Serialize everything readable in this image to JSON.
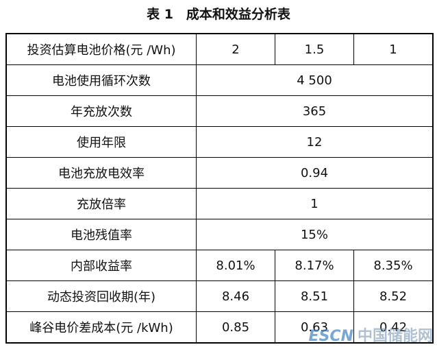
{
  "title": "表 1　成本和效益分析表",
  "table": {
    "rows": [
      [
        "投资估算电池价格(元 /Wh)",
        "2",
        "1.5",
        "1"
      ],
      [
        "电池使用循环次数",
        "4 500"
      ],
      [
        "年充放次数",
        "365"
      ],
      [
        "使用年限",
        "12"
      ],
      [
        "电池充放电效率",
        "0.94"
      ],
      [
        "充放倍率",
        "1"
      ],
      [
        "电池残值率",
        "15%"
      ],
      [
        "内部收益率",
        "8.01%",
        "8.17%",
        "8.35%"
      ],
      [
        "动态投资回收期(年)",
        "8.46",
        "8.51",
        "8.52"
      ],
      [
        "峰谷电价差成本(元 /kWh)",
        "0.85",
        "0.63",
        "0.42"
      ]
    ]
  },
  "watermark": {
    "brand": "ESCN",
    "name": "中国储能网"
  }
}
